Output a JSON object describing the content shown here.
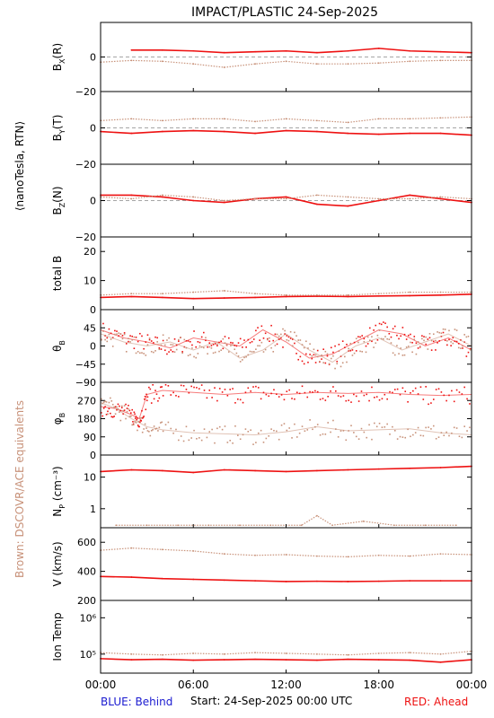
{
  "title": "IMPACT/PLASTIC   24-Sep-2025",
  "left_label_top": "⟨nanoTesla, RTN⟩",
  "left_label_bottom": "Brown: DSCOVR/ACE equivalents",
  "footer": {
    "left": "BLUE: Behind",
    "center": "Start: 24-Sep-2025 00:00 UTC",
    "right": "RED: Ahead"
  },
  "colors": {
    "ahead": "#ee1111",
    "ace": "#c8927a",
    "behind": "#1a1ad0",
    "axis": "#000000"
  },
  "x_axis": {
    "ticks": [
      "00:00",
      "06:00",
      "12:00",
      "18:00",
      "00:00"
    ],
    "range_hours": [
      0,
      24
    ]
  },
  "chart_data": [
    {
      "type": "line",
      "id": "bx",
      "ylabel": "B",
      "ylabel_sub": "X",
      "ylabel_suffix": "(R)",
      "ylim": [
        -20,
        20
      ],
      "yticks": [
        "0",
        "−20"
      ],
      "ytick_values": [
        0,
        -20
      ],
      "zero_line": true,
      "series": [
        {
          "name": "Ahead",
          "color": "ahead",
          "x": [
            2,
            4,
            6,
            8,
            10,
            12,
            14,
            16,
            18,
            20,
            22,
            24
          ],
          "y": [
            4,
            4,
            3.5,
            2.5,
            3,
            3.5,
            2.5,
            3.5,
            5,
            3.5,
            3,
            2.5
          ]
        },
        {
          "name": "DSCOVR/ACE",
          "color": "ace",
          "x": [
            0,
            2,
            4,
            6,
            8,
            10,
            12,
            14,
            16,
            18,
            20,
            22,
            24
          ],
          "y": [
            -3,
            -2,
            -2.5,
            -4,
            -6,
            -4,
            -2.5,
            -4,
            -4,
            -3.5,
            -2.5,
            -2,
            -2
          ]
        }
      ]
    },
    {
      "type": "line",
      "id": "by",
      "ylabel": "B",
      "ylabel_sub": "Y",
      "ylabel_suffix": "(T)",
      "ylim": [
        -20,
        20
      ],
      "yticks": [
        "0",
        "−20"
      ],
      "ytick_values": [
        0,
        -20
      ],
      "zero_line": true,
      "series": [
        {
          "name": "Ahead",
          "color": "ahead",
          "x": [
            0,
            2,
            4,
            6,
            8,
            10,
            12,
            14,
            16,
            18,
            20,
            22,
            24
          ],
          "y": [
            -2,
            -3,
            -2,
            -1.5,
            -2,
            -3,
            -1.5,
            -2,
            -3,
            -3.5,
            -3,
            -3,
            -4
          ]
        },
        {
          "name": "DSCOVR/ACE",
          "color": "ace",
          "x": [
            0,
            2,
            4,
            6,
            8,
            10,
            12,
            14,
            16,
            18,
            20,
            22,
            24
          ],
          "y": [
            4,
            5,
            4,
            5,
            5,
            3.5,
            5,
            4,
            3,
            5,
            5,
            5.5,
            6
          ]
        }
      ]
    },
    {
      "type": "line",
      "id": "bz",
      "ylabel": "B",
      "ylabel_sub": "Z",
      "ylabel_suffix": "(N)",
      "ylim": [
        -20,
        20
      ],
      "yticks": [
        "0",
        "−20"
      ],
      "ytick_values": [
        0,
        -20
      ],
      "zero_line": true,
      "series": [
        {
          "name": "Ahead",
          "color": "ahead",
          "x": [
            0,
            2,
            4,
            6,
            8,
            10,
            12,
            14,
            16,
            18,
            20,
            22,
            24
          ],
          "y": [
            3,
            3,
            2,
            0,
            -1,
            1,
            2,
            -2,
            -3,
            0,
            3,
            1,
            -1
          ]
        },
        {
          "name": "DSCOVR/ACE",
          "color": "ace",
          "x": [
            0,
            2,
            4,
            6,
            8,
            10,
            12,
            14,
            16,
            18,
            20,
            22,
            24
          ],
          "y": [
            2,
            1,
            3,
            2,
            0,
            1,
            1,
            3,
            2,
            1,
            1,
            2,
            1
          ]
        }
      ]
    },
    {
      "type": "line",
      "id": "btot",
      "ylabel": "total B",
      "ylim": [
        0,
        25
      ],
      "yticks": [
        "20",
        "10",
        "0"
      ],
      "ytick_values": [
        20,
        10,
        0
      ],
      "zero_line": false,
      "series": [
        {
          "name": "Ahead",
          "color": "ahead",
          "x": [
            0,
            2,
            4,
            6,
            8,
            10,
            12,
            14,
            16,
            18,
            20,
            22,
            24
          ],
          "y": [
            4.2,
            4.5,
            4.2,
            3.8,
            4,
            4.2,
            4.5,
            4.6,
            4.5,
            4.7,
            4.8,
            5,
            5.3
          ]
        },
        {
          "name": "DSCOVR/ACE",
          "color": "ace",
          "x": [
            0,
            2,
            4,
            6,
            8,
            10,
            12,
            14,
            16,
            18,
            20,
            22,
            24
          ],
          "y": [
            5,
            5.5,
            5.5,
            6,
            6.5,
            5.5,
            5,
            5,
            5,
            5.5,
            6,
            6,
            6
          ]
        }
      ]
    },
    {
      "type": "scatter",
      "id": "theta",
      "ylabel": "θ",
      "ylabel_sub": "B",
      "ylim": [
        -90,
        90
      ],
      "yticks": [
        "45",
        "0",
        "−45",
        "−90"
      ],
      "ytick_values": [
        45,
        0,
        -45,
        -90
      ],
      "zero_line": false,
      "series": [
        {
          "name": "Ahead",
          "color": "ahead",
          "x": [
            0,
            1.5,
            3,
            4.5,
            6,
            7.5,
            9,
            10.5,
            12,
            13.5,
            15,
            16.5,
            18,
            19.5,
            21,
            22.5,
            24
          ],
          "y": [
            40,
            20,
            10,
            -5,
            20,
            10,
            0,
            40,
            10,
            -30,
            -20,
            10,
            40,
            30,
            0,
            20,
            -10
          ]
        },
        {
          "name": "DSCOVR/ACE",
          "color": "ace",
          "x": [
            0,
            1.5,
            3,
            4.5,
            6,
            7.5,
            9,
            10.5,
            12,
            13.5,
            15,
            16.5,
            18,
            19.5,
            21,
            22.5,
            24
          ],
          "y": [
            30,
            10,
            0,
            10,
            -10,
            10,
            -30,
            -10,
            30,
            -10,
            -40,
            0,
            20,
            -10,
            10,
            30,
            0
          ]
        }
      ]
    },
    {
      "type": "scatter",
      "id": "phi",
      "ylabel": "φ",
      "ylabel_sub": "B",
      "ylim": [
        0,
        360
      ],
      "yticks": [
        "270",
        "180",
        "90",
        "0"
      ],
      "ytick_values": [
        270,
        180,
        90,
        0
      ],
      "zero_line": false,
      "series": [
        {
          "name": "Ahead",
          "color": "ahead",
          "x": [
            0,
            1,
            2,
            2.5,
            3,
            4,
            6,
            8,
            10,
            12,
            14,
            16,
            18,
            20,
            22,
            24
          ],
          "y": [
            240,
            230,
            200,
            180,
            300,
            320,
            310,
            300,
            310,
            300,
            310,
            305,
            310,
            300,
            295,
            300
          ]
        },
        {
          "name": "DSCOVR/ACE",
          "color": "ace",
          "x": [
            0,
            1,
            2,
            3,
            4,
            6,
            8,
            10,
            12,
            14,
            16,
            18,
            20,
            22,
            24
          ],
          "y": [
            260,
            230,
            180,
            140,
            125,
            110,
            105,
            100,
            115,
            140,
            120,
            125,
            130,
            110,
            100
          ]
        }
      ]
    },
    {
      "type": "line",
      "id": "np",
      "ylabel": "N",
      "ylabel_sub": "P",
      "ylabel_suffix": " (cm⁻³)",
      "yscale": "log",
      "ylim": [
        0.25,
        50
      ],
      "yticks": [
        "10",
        "1"
      ],
      "ytick_values": [
        10,
        1
      ],
      "zero_line": false,
      "series": [
        {
          "name": "Ahead",
          "color": "ahead",
          "x": [
            0,
            2,
            4,
            6,
            8,
            10,
            12,
            14,
            16,
            18,
            20,
            22,
            24
          ],
          "y": [
            15,
            17,
            16,
            14,
            17,
            16,
            15,
            16,
            17,
            18,
            19,
            20,
            22
          ]
        },
        {
          "name": "DSCOVR/ACE",
          "color": "ace",
          "x": [
            1,
            3,
            5,
            7,
            9,
            11,
            13,
            14,
            15,
            17,
            19,
            21,
            23
          ],
          "y": [
            0.3,
            0.3,
            0.3,
            0.3,
            0.3,
            0.3,
            0.3,
            0.6,
            0.3,
            0.4,
            0.3,
            0.3,
            0.3
          ]
        }
      ]
    },
    {
      "type": "line",
      "id": "v",
      "ylabel": "V (km/s)",
      "ylim": [
        200,
        700
      ],
      "yticks": [
        "600",
        "400",
        "200"
      ],
      "ytick_values": [
        600,
        400,
        200
      ],
      "zero_line": false,
      "series": [
        {
          "name": "Ahead",
          "color": "ahead",
          "x": [
            0,
            2,
            4,
            6,
            8,
            10,
            12,
            14,
            16,
            18,
            20,
            22,
            24
          ],
          "y": [
            365,
            360,
            350,
            345,
            340,
            335,
            330,
            332,
            330,
            332,
            335,
            335,
            335
          ]
        },
        {
          "name": "DSCOVR/ACE",
          "color": "ace",
          "x": [
            0,
            2,
            4,
            6,
            8,
            10,
            12,
            14,
            16,
            18,
            20,
            22,
            24
          ],
          "y": [
            545,
            560,
            550,
            540,
            520,
            510,
            515,
            505,
            500,
            510,
            505,
            520,
            515
          ]
        }
      ]
    },
    {
      "type": "line",
      "id": "temp",
      "ylabel": "Ion Temp",
      "yscale": "log",
      "ylim": [
        30000,
        3000000
      ],
      "yticks": [
        "10⁶",
        "10⁵"
      ],
      "ytick_values": [
        1000000,
        100000
      ],
      "zero_line": false,
      "series": [
        {
          "name": "Ahead",
          "color": "ahead",
          "x": [
            0,
            2,
            4,
            6,
            8,
            10,
            12,
            14,
            16,
            18,
            20,
            22,
            24
          ],
          "y": [
            75000,
            70000,
            72000,
            68000,
            70000,
            72000,
            70000,
            68000,
            72000,
            70000,
            68000,
            60000,
            70000
          ]
        },
        {
          "name": "DSCOVR/ACE",
          "color": "ace",
          "x": [
            0,
            2,
            4,
            6,
            8,
            10,
            12,
            14,
            16,
            18,
            20,
            22,
            24
          ],
          "y": [
            110000,
            100000,
            95000,
            105000,
            100000,
            110000,
            105000,
            100000,
            95000,
            105000,
            110000,
            100000,
            120000
          ]
        }
      ]
    }
  ]
}
